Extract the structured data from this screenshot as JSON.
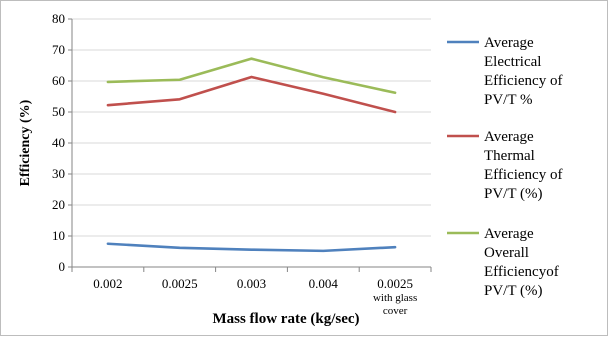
{
  "chart_data": {
    "type": "line",
    "title": "",
    "xlabel": "Mass flow rate (kg/sec)",
    "ylabel": "Efficiency (%)",
    "ylim": [
      0,
      80
    ],
    "yticks": [
      "0",
      "10",
      "20",
      "30",
      "40",
      "50",
      "60",
      "70",
      "80"
    ],
    "categories": [
      [
        "0.002"
      ],
      [
        "0.0025"
      ],
      [
        "0.003"
      ],
      [
        "0.004"
      ],
      [
        "0.0025",
        "with glass",
        "cover"
      ]
    ],
    "grid": true,
    "legend": "right",
    "series": [
      {
        "name": "Average Electrical Efficiency of PV/T %",
        "legend_lines": [
          "Average",
          "Electrical",
          "Efficiency of",
          "PV/T %"
        ],
        "color": "#4f81bd",
        "values": [
          7.5,
          6.2,
          5.6,
          5.2,
          6.4
        ]
      },
      {
        "name": "Average Thermal Efficiency of PV/T (%)",
        "legend_lines": [
          "Average",
          "Thermal",
          "Efficiency  of",
          "PV/T (%)"
        ],
        "color": "#c0504d",
        "values": [
          52.2,
          54.1,
          61.3,
          55.9,
          50.0
        ]
      },
      {
        "name": "Average Overall Efficiencyof PV/T (%)",
        "legend_lines": [
          "Average",
          "Overall",
          "Efficiencyof",
          "PV/T (%)"
        ],
        "color": "#9bbb59",
        "values": [
          59.7,
          60.4,
          67.2,
          61.2,
          56.2
        ]
      }
    ]
  }
}
